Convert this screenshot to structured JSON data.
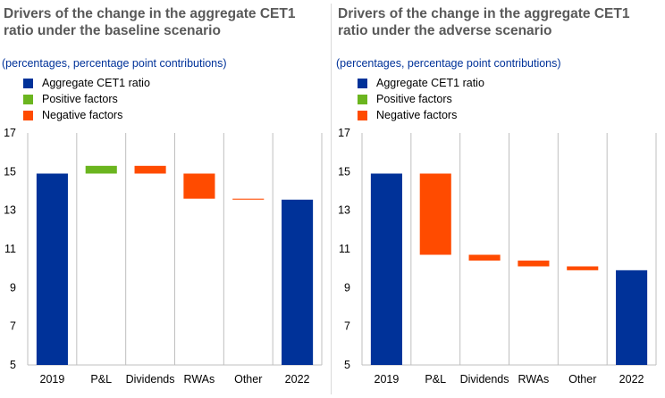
{
  "colors": {
    "aggregate": "#003299",
    "positive": "#6bb51f",
    "negative": "#ff4b00",
    "axis": "#bfbfbf",
    "title": "#595959",
    "subtitle": "#003299"
  },
  "legend": [
    {
      "label": "Aggregate CET1 ratio",
      "color": "#003299"
    },
    {
      "label": "Positive factors",
      "color": "#6bb51f"
    },
    {
      "label": "Negative factors",
      "color": "#ff4b00"
    }
  ],
  "chart_data": [
    {
      "type": "bar",
      "subtype": "waterfall",
      "title": "Drivers of the change in the aggregate CET1 ratio under the baseline scenario",
      "subtitle": "(percentages, percentage point contributions)",
      "ylim": [
        5,
        17
      ],
      "yticks": [
        5,
        7,
        9,
        11,
        13,
        15,
        17
      ],
      "categories": [
        "2019",
        "P&L",
        "Dividends",
        "RWAs",
        "Other",
        "2022"
      ],
      "bars": [
        {
          "category": "2019",
          "kind": "aggregate",
          "start": 5,
          "end": 14.9
        },
        {
          "category": "P&L",
          "kind": "positive",
          "start": 14.9,
          "end": 15.3
        },
        {
          "category": "Dividends",
          "kind": "negative",
          "start": 15.3,
          "end": 14.9
        },
        {
          "category": "RWAs",
          "kind": "negative",
          "start": 14.9,
          "end": 13.6
        },
        {
          "category": "Other",
          "kind": "negative",
          "start": 13.6,
          "end": 13.55
        },
        {
          "category": "2022",
          "kind": "aggregate",
          "start": 5,
          "end": 13.55
        }
      ]
    },
    {
      "type": "bar",
      "subtype": "waterfall",
      "title": "Drivers of the change in the aggregate CET1 ratio under the adverse scenario",
      "subtitle": "(percentages, percentage point contributions)",
      "ylim": [
        5,
        17
      ],
      "yticks": [
        5,
        7,
        9,
        11,
        13,
        15,
        17
      ],
      "categories": [
        "2019",
        "P&L",
        "Dividends",
        "RWAs",
        "Other",
        "2022"
      ],
      "bars": [
        {
          "category": "2019",
          "kind": "aggregate",
          "start": 5,
          "end": 14.9
        },
        {
          "category": "P&L",
          "kind": "negative",
          "start": 14.9,
          "end": 10.7
        },
        {
          "category": "Dividends",
          "kind": "negative",
          "start": 10.7,
          "end": 10.4
        },
        {
          "category": "RWAs",
          "kind": "negative",
          "start": 10.4,
          "end": 10.1
        },
        {
          "category": "Other",
          "kind": "negative",
          "start": 10.1,
          "end": 9.9
        },
        {
          "category": "2022",
          "kind": "aggregate",
          "start": 5,
          "end": 9.9
        }
      ]
    }
  ]
}
